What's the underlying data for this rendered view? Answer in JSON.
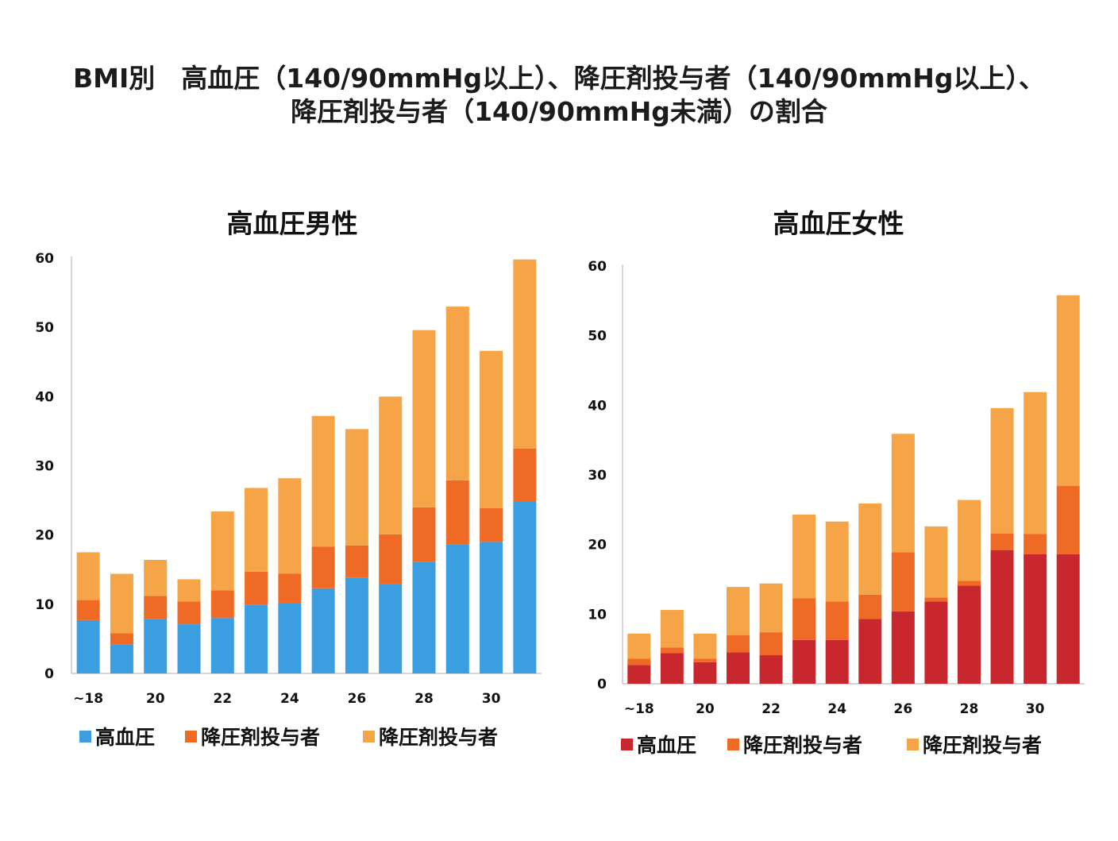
{
  "title": {
    "line1": "BMI別　高血圧（140/90mmHg以上）、降圧剤投与者（140/90mmHg以上）、",
    "line2": "降圧剤投与者（140/90mmHg未満）の割合"
  },
  "colors": {
    "male_hypertension": "#3b9ee0",
    "female_hypertension": "#c8272e",
    "treated_uncontrolled": "#ef6a24",
    "treated_controlled": "#f5a447"
  },
  "chart_data": [
    {
      "type": "bar",
      "stacked": true,
      "title": "高血圧男性",
      "x_tick_labels": [
        "~18",
        "20",
        "22",
        "24",
        "26",
        "28",
        "30"
      ],
      "categories": [
        "~18",
        "19",
        "20",
        "21",
        "22",
        "23",
        "24",
        "25",
        "26",
        "27",
        "28",
        "29",
        "30",
        "31"
      ],
      "ylim": [
        0,
        60
      ],
      "yticks": [
        0,
        10,
        20,
        30,
        40,
        50,
        60
      ],
      "grid": false,
      "legend_position": "bottom",
      "series": [
        {
          "name": "高血圧",
          "values": [
            7.7,
            4.2,
            7.9,
            7.1,
            8.0,
            9.9,
            10.1,
            12.3,
            13.8,
            12.9,
            16.1,
            18.6,
            19.0,
            24.9
          ]
        },
        {
          "name": "降圧剤投与者",
          "values": [
            2.9,
            1.6,
            3.3,
            3.3,
            4.0,
            4.8,
            4.3,
            6.0,
            4.7,
            7.2,
            7.9,
            9.3,
            4.9,
            7.6
          ]
        },
        {
          "name": "降圧剤投与者",
          "values": [
            6.9,
            8.6,
            5.2,
            3.2,
            11.4,
            12.1,
            13.8,
            18.9,
            16.8,
            19.9,
            25.6,
            25.1,
            22.7,
            27.3
          ]
        }
      ]
    },
    {
      "type": "bar",
      "stacked": true,
      "title": "高血圧女性",
      "x_tick_labels": [
        "~18",
        "20",
        "22",
        "24",
        "26",
        "28",
        "30"
      ],
      "categories": [
        "~18",
        "19",
        "20",
        "21",
        "22",
        "23",
        "24",
        "25",
        "26",
        "27",
        "28",
        "29",
        "30",
        "31"
      ],
      "ylim": [
        0,
        60
      ],
      "yticks": [
        0,
        10,
        20,
        30,
        40,
        50,
        60
      ],
      "grid": false,
      "legend_position": "bottom",
      "series": [
        {
          "name": "高血圧",
          "values": [
            2.7,
            4.4,
            3.1,
            4.5,
            4.1,
            6.3,
            6.3,
            9.3,
            10.4,
            11.8,
            14.1,
            19.2,
            18.6,
            18.6
          ]
        },
        {
          "name": "降圧剤投与者",
          "values": [
            0.9,
            0.8,
            0.5,
            2.5,
            3.3,
            6.0,
            5.5,
            3.5,
            8.5,
            0.6,
            0.7,
            2.4,
            2.9,
            9.8
          ]
        },
        {
          "name": "降圧剤投与者",
          "values": [
            3.6,
            5.4,
            3.6,
            6.9,
            7.0,
            12.0,
            11.5,
            13.1,
            17.0,
            10.2,
            11.6,
            18.0,
            20.4,
            27.4
          ]
        }
      ]
    }
  ]
}
